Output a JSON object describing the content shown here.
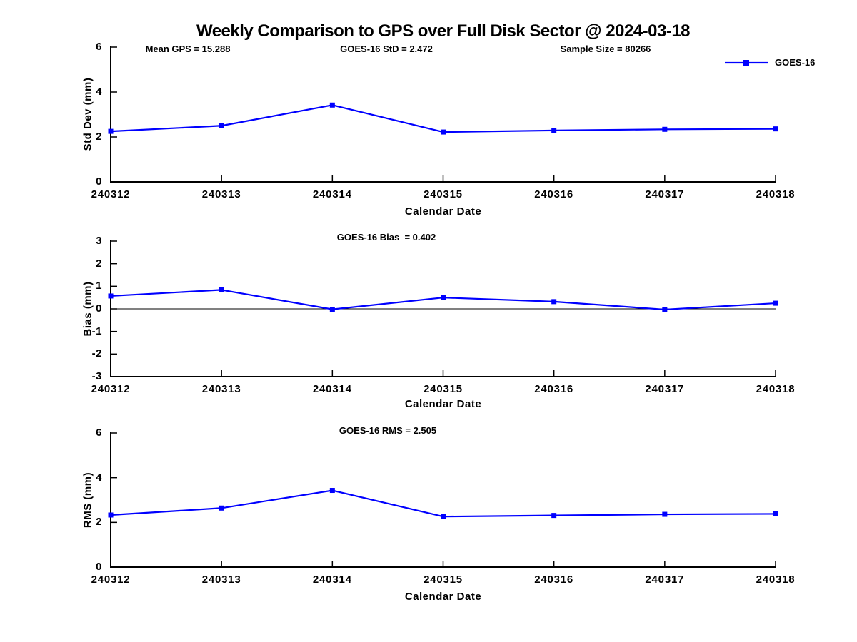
{
  "title": "Weekly Comparison to GPS over Full Disk Sector @ 2024-03-18",
  "legend": {
    "label": "GOES-16"
  },
  "colors": {
    "series": "#0000ff",
    "axis": "#000000",
    "text": "#000000",
    "background": "#ffffff"
  },
  "chart_data": [
    {
      "id": "stddev",
      "type": "line",
      "categories": [
        "240312",
        "240313",
        "240314",
        "240315",
        "240316",
        "240317",
        "240318"
      ],
      "series": [
        {
          "name": "GOES-16",
          "values": [
            2.25,
            2.5,
            3.42,
            2.22,
            2.29,
            2.34,
            2.36
          ]
        }
      ],
      "annotations": [
        "Mean GPS = 15.288",
        "GOES-16 StD = 2.472",
        "Sample Size = 80266"
      ],
      "ylabel": "Std Dev (mm)",
      "xlabel": "Calendar Date",
      "ylim": [
        0,
        6
      ],
      "yticks": [
        0,
        2,
        4,
        6
      ],
      "grid": false,
      "legend_entries": [
        "GOES-16"
      ],
      "legend_position": "upper right"
    },
    {
      "id": "bias",
      "type": "line",
      "categories": [
        "240312",
        "240313",
        "240314",
        "240315",
        "240316",
        "240317",
        "240318"
      ],
      "series": [
        {
          "name": "GOES-16",
          "values": [
            0.57,
            0.84,
            -0.02,
            0.5,
            0.32,
            -0.03,
            0.25
          ]
        }
      ],
      "annotations": [
        "GOES-16 Bias  = 0.402"
      ],
      "ylabel": "Bias (mm)",
      "xlabel": "Calendar Date",
      "ylim": [
        -3,
        3
      ],
      "yticks": [
        3,
        2,
        1,
        0,
        -1,
        -2,
        -3
      ],
      "zero_line": true,
      "grid": false
    },
    {
      "id": "rms",
      "type": "line",
      "categories": [
        "240312",
        "240313",
        "240314",
        "240315",
        "240316",
        "240317",
        "240318"
      ],
      "series": [
        {
          "name": "GOES-16",
          "values": [
            2.33,
            2.64,
            3.43,
            2.26,
            2.31,
            2.36,
            2.38
          ]
        }
      ],
      "annotations": [
        "GOES-16 RMS = 2.505"
      ],
      "ylabel": "RMS (mm)",
      "xlabel": "Calendar Date",
      "ylim": [
        0,
        6
      ],
      "yticks": [
        0,
        2,
        4,
        6
      ],
      "grid": false
    }
  ]
}
